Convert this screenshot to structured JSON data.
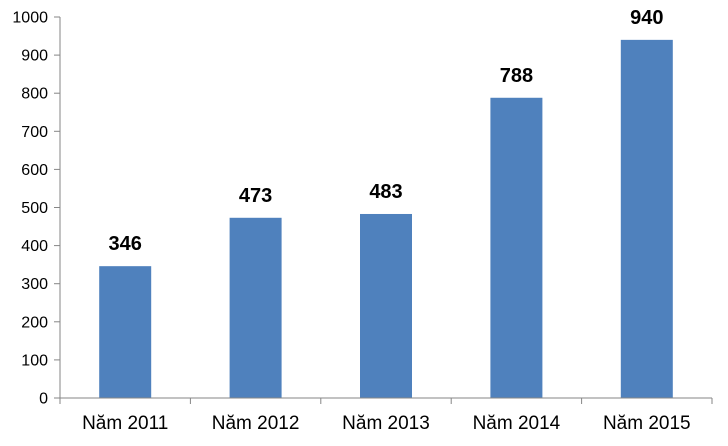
{
  "chart_data": {
    "type": "bar",
    "categories": [
      "Năm 2011",
      "Năm 2012",
      "Năm 2013",
      "Năm 2014",
      "Năm 2015"
    ],
    "values": [
      346,
      473,
      483,
      788,
      940
    ],
    "data_labels": [
      "346",
      "473",
      "483",
      "788",
      "940"
    ],
    "title": "",
    "xlabel": "",
    "ylabel": "",
    "ylim": [
      0,
      1000
    ],
    "yticks": [
      0,
      100,
      200,
      300,
      400,
      500,
      600,
      700,
      800,
      900,
      1000
    ],
    "ytick_labels": [
      "0",
      "100",
      "200",
      "300",
      "400",
      "500",
      "600",
      "700",
      "800",
      "900",
      "1000"
    ],
    "grid": false,
    "legend": "none",
    "colors": {
      "bar": "#4f81bd",
      "axis": "#868686",
      "text": "#000000"
    }
  }
}
